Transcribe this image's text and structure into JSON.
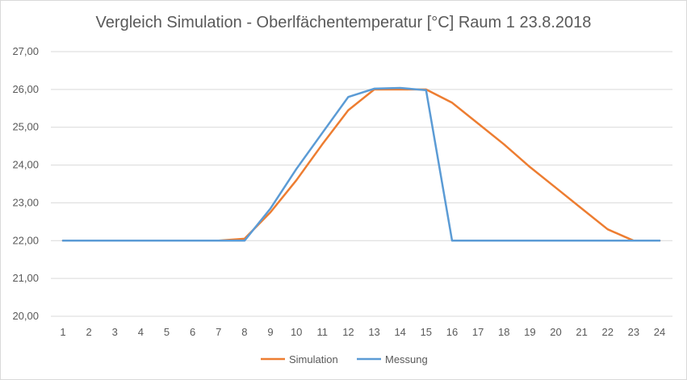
{
  "chart_data": {
    "type": "line",
    "title": "Vergleich Simulation - Oberlfächentemperatur  [°C] Raum 1 23.8.2018",
    "xlabel": "",
    "ylabel": "",
    "categories": [
      "1",
      "2",
      "3",
      "4",
      "5",
      "6",
      "7",
      "8",
      "9",
      "10",
      "11",
      "12",
      "13",
      "14",
      "15",
      "16",
      "17",
      "18",
      "19",
      "20",
      "21",
      "22",
      "23",
      "24"
    ],
    "ylim": [
      20,
      27
    ],
    "yticks": [
      "20,00",
      "21,00",
      "22,00",
      "23,00",
      "24,00",
      "25,00",
      "26,00",
      "27,00"
    ],
    "grid": true,
    "legend_position": "bottom",
    "series": [
      {
        "name": "Simulation",
        "color": "#ED7D31",
        "values": [
          22.0,
          22.0,
          22.0,
          22.0,
          22.0,
          22.0,
          22.0,
          22.05,
          22.75,
          23.6,
          24.55,
          25.45,
          26.0,
          26.0,
          26.0,
          25.65,
          25.1,
          24.55,
          23.95,
          23.4,
          22.85,
          22.3,
          22.0,
          22.0
        ]
      },
      {
        "name": "Messung",
        "color": "#5B9BD5",
        "values": [
          22.0,
          22.0,
          22.0,
          22.0,
          22.0,
          22.0,
          22.0,
          22.0,
          22.85,
          23.9,
          24.85,
          25.8,
          26.02,
          26.04,
          25.98,
          22.0,
          22.0,
          22.0,
          22.0,
          22.0,
          22.0,
          22.0,
          22.0,
          22.0
        ]
      }
    ]
  }
}
